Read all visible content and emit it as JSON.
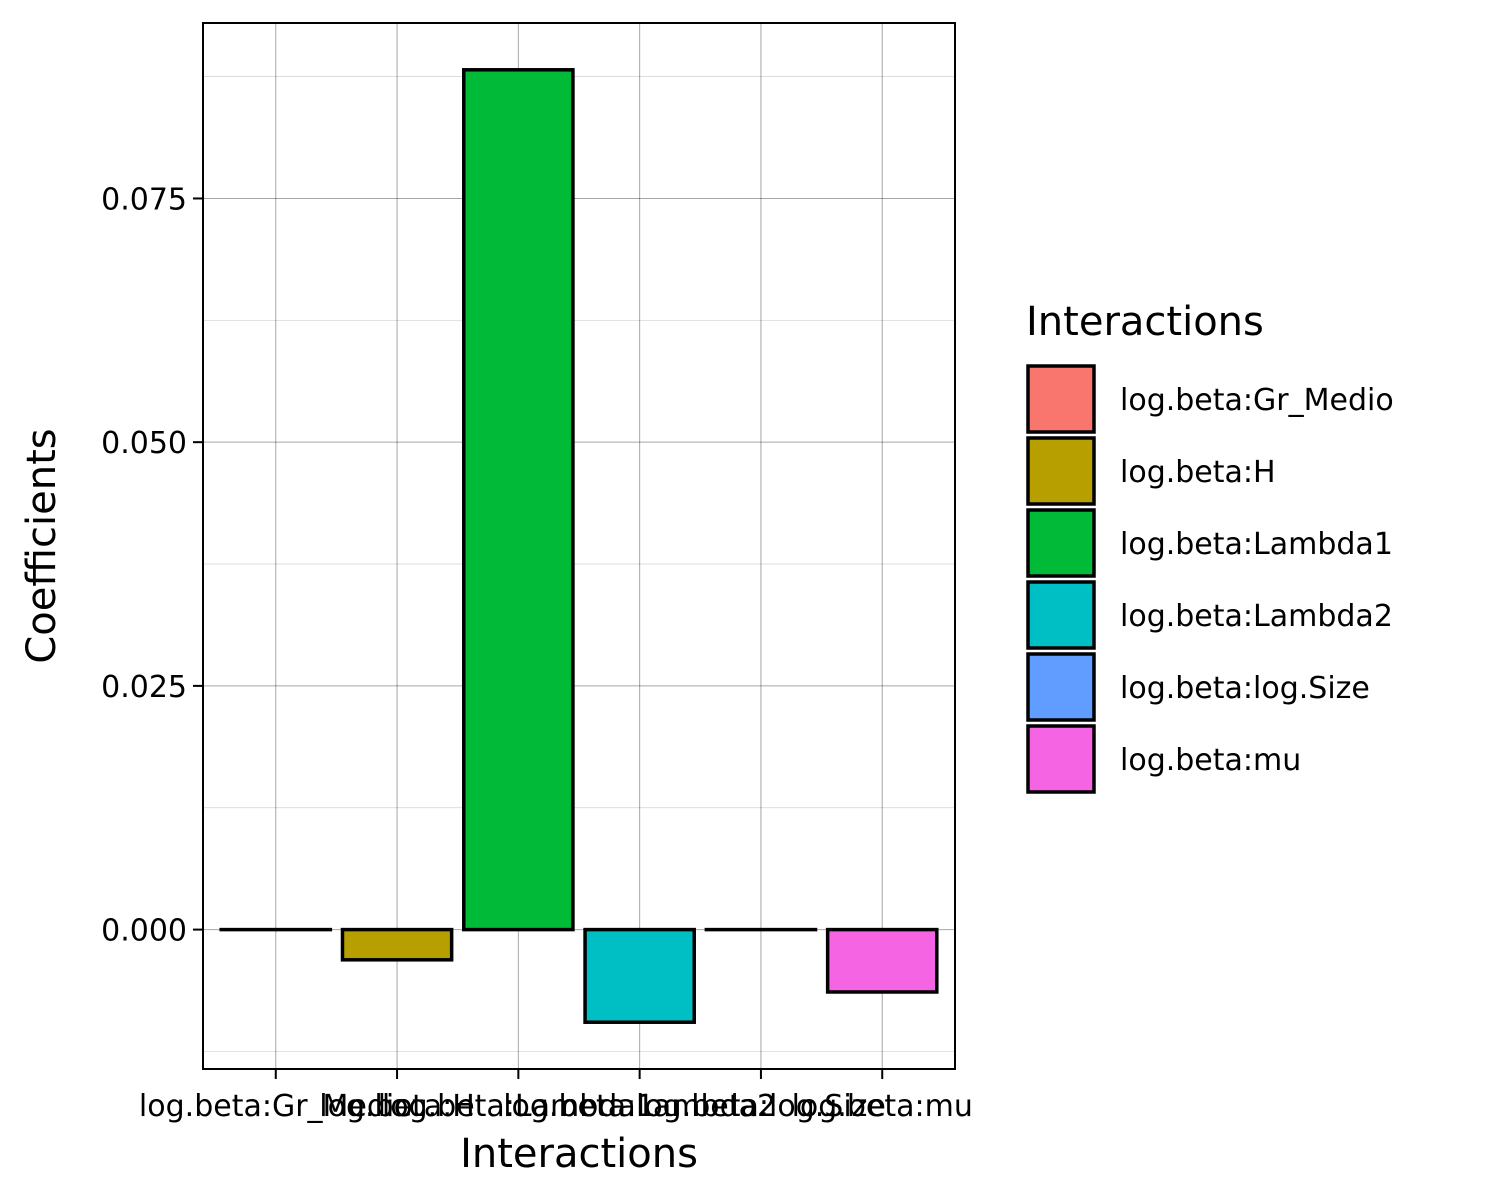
{
  "chart_data": {
    "type": "bar",
    "categories": [
      "log.beta:Gr_Medio",
      "log.beta:H",
      "log.beta:Lambda1",
      "log.beta:Lambda2",
      "log.beta:log.Size",
      "log.beta:mu"
    ],
    "values": [
      0.0,
      -0.0031,
      0.0882,
      -0.0095,
      0.0,
      -0.0064
    ],
    "colors": [
      "#F8766D",
      "#B79F00",
      "#00BA38",
      "#00BFC4",
      "#619CFF",
      "#F564E3"
    ],
    "xlabel": "Interactions",
    "ylabel": "Coefficients",
    "ylim": [
      -0.0143,
      0.093
    ],
    "yticks": [
      0.0,
      0.025,
      0.05,
      0.075
    ],
    "ytick_labels": [
      "0.000",
      "0.025",
      "0.050",
      "0.075"
    ],
    "grid": true,
    "legend": {
      "title": "Interactions",
      "position": "right",
      "entries": [
        "log.beta:Gr_Medio",
        "log.beta:H",
        "log.beta:Lambda1",
        "log.beta:Lambda2",
        "log.beta:log.Size",
        "log.beta:mu"
      ]
    }
  }
}
